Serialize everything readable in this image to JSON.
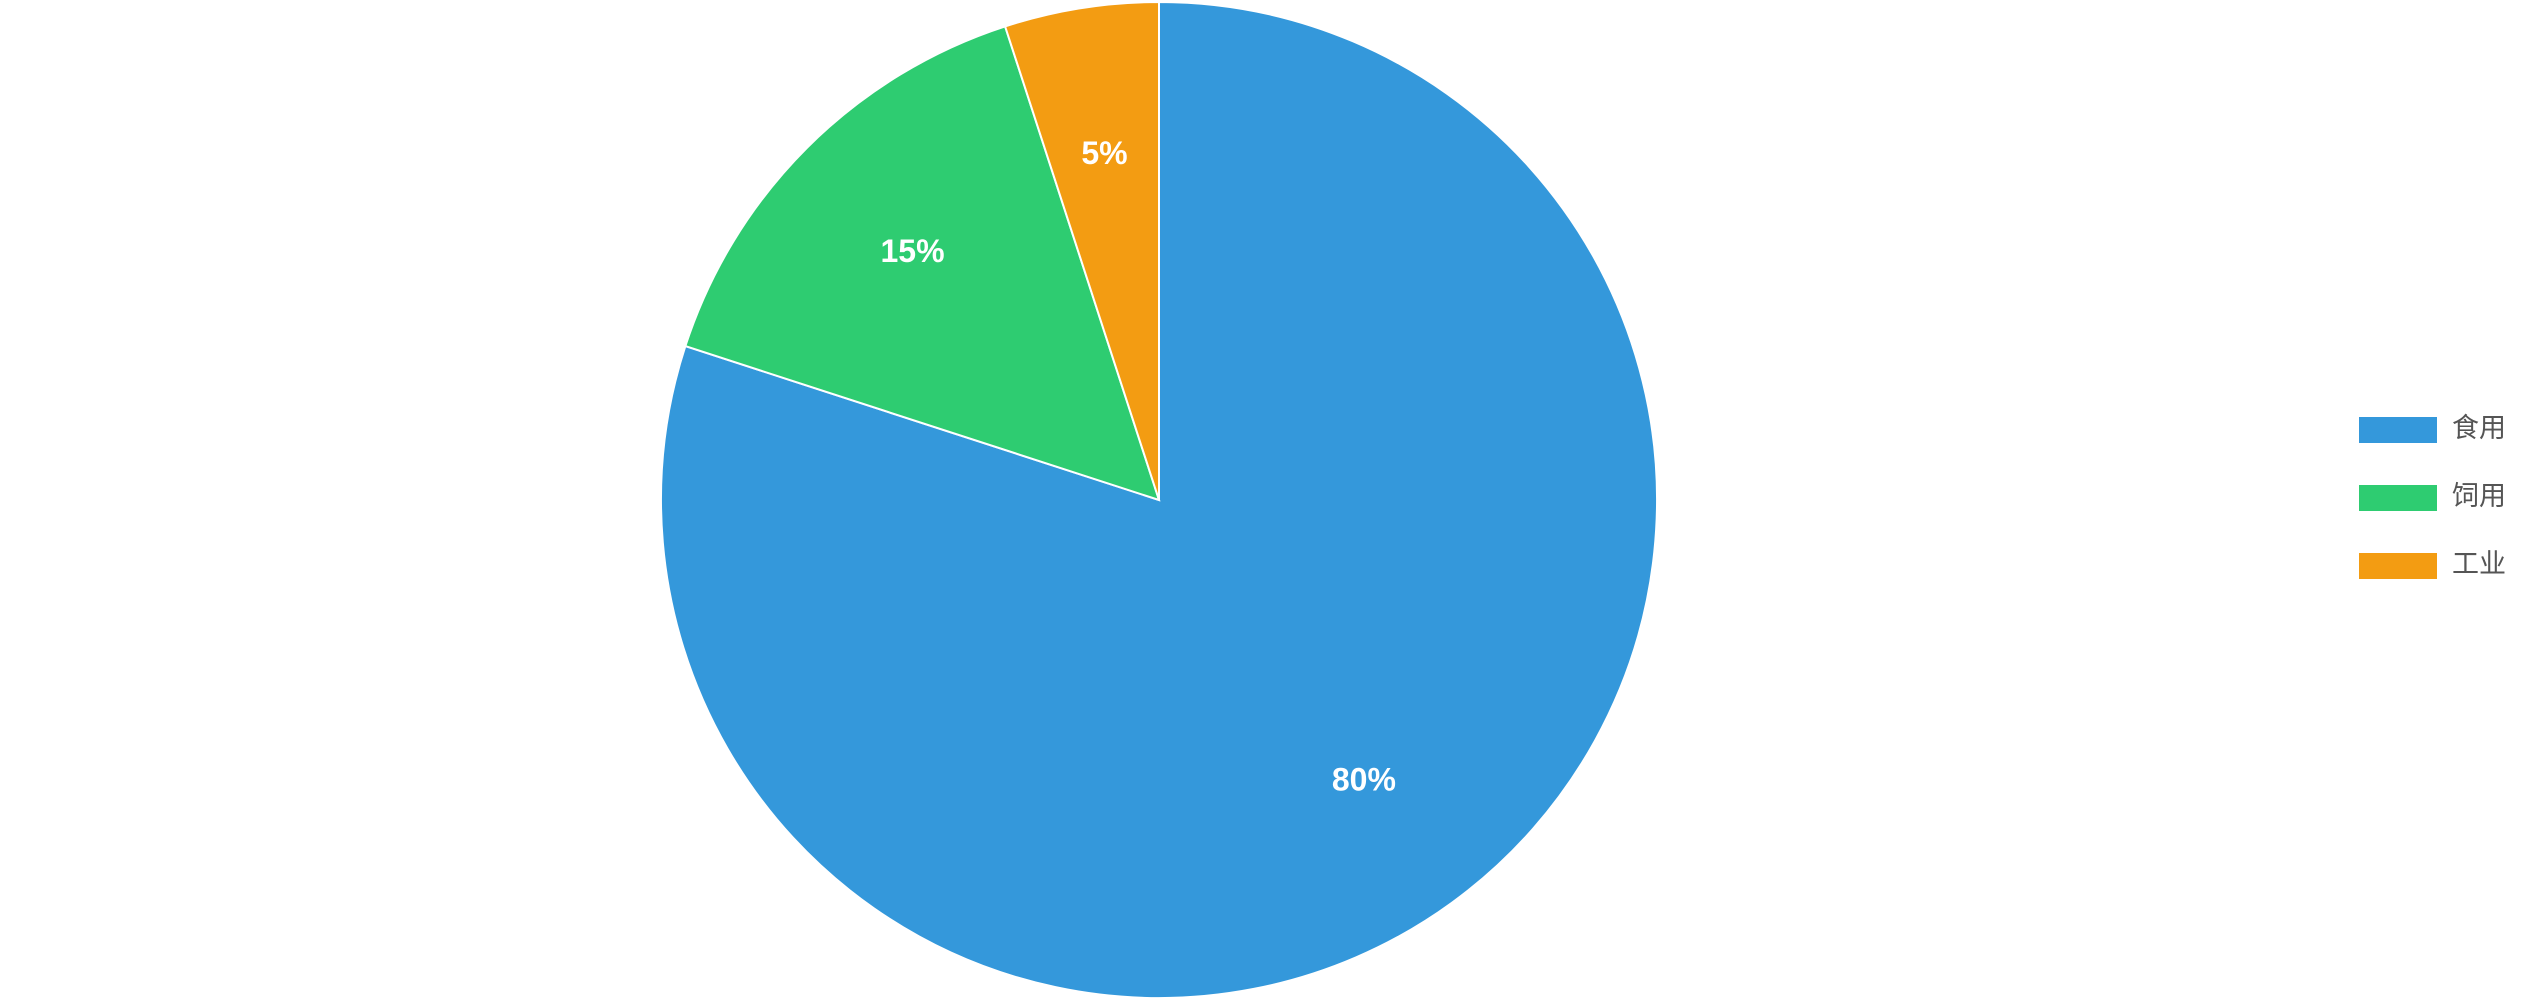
{
  "chart_data": {
    "type": "pie",
    "categories": [
      "食用",
      "饲用",
      "工业"
    ],
    "values": [
      80,
      15,
      5
    ],
    "value_labels": [
      "80%",
      "15%",
      "5%"
    ],
    "colors": [
      "#3498db",
      "#2ecc71",
      "#f39c12"
    ],
    "legend": "right"
  }
}
